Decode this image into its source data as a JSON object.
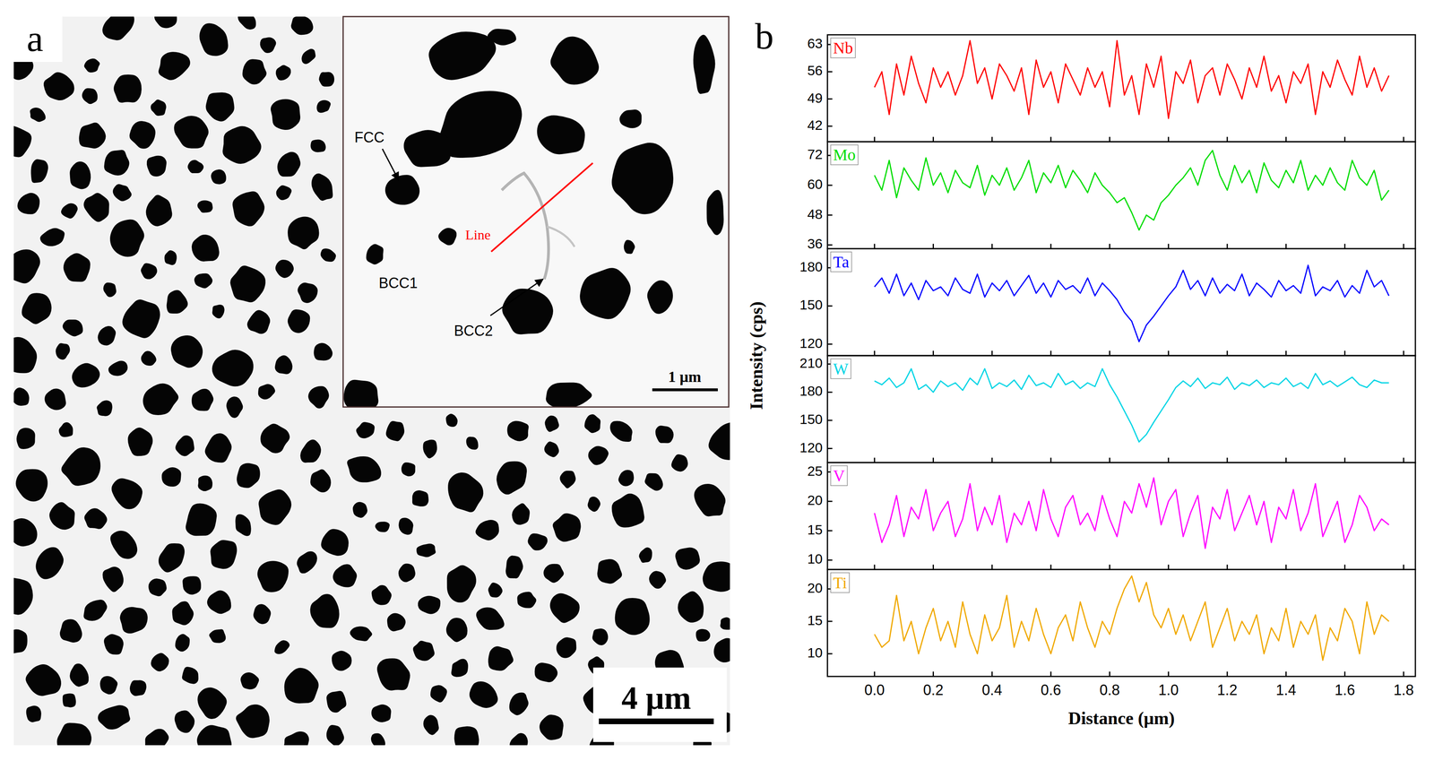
{
  "panel_a": {
    "label": "a",
    "phases": {
      "fcc": "FCC",
      "bcc1": "BCC1",
      "bcc2": "BCC2"
    },
    "line_label": "Line",
    "inset_scale_bar": "1 μm",
    "scale_bar": "4 μm"
  },
  "panel_b_label": "b",
  "chart_data": [
    {
      "type": "line",
      "ylabel": "Intensity (cps)",
      "tick_labels": "y",
      "x": [
        0,
        0.025,
        0.05,
        0.075,
        0.1,
        0.125,
        0.15,
        0.175,
        0.2,
        0.225,
        0.25,
        0.275,
        0.3,
        0.325,
        0.35,
        0.375,
        0.4,
        0.425,
        0.45,
        0.475,
        0.5,
        0.525,
        0.55,
        0.575,
        0.6,
        0.625,
        0.65,
        0.675,
        0.7,
        0.725,
        0.75,
        0.775,
        0.8,
        0.825,
        0.85,
        0.875,
        0.9,
        0.925,
        0.95,
        0.975,
        1,
        1.025,
        1.05,
        1.075,
        1.1,
        1.125,
        1.15,
        1.175,
        1.2,
        1.225,
        1.25,
        1.275,
        1.3,
        1.325,
        1.35,
        1.375,
        1.4,
        1.425,
        1.45,
        1.475,
        1.5,
        1.525,
        1.55,
        1.575,
        1.6,
        1.625,
        1.65,
        1.675,
        1.7,
        1.725,
        1.75
      ],
      "xlim": [
        -0.16,
        1.84
      ],
      "xticks": [
        {
          "value": 0,
          "label": "0.0"
        },
        0.2,
        0.4,
        0.6,
        0.8,
        {
          "value": 1,
          "label": "1.0"
        },
        1.2,
        1.4,
        1.6,
        1.8
      ],
      "ylim": [
        38,
        65.5
      ],
      "yticks": [
        42,
        49,
        56,
        63
      ],
      "series": [
        {
          "name": "Nb",
          "color": "#ff0000",
          "values": [
            52,
            56,
            45,
            58,
            50,
            60,
            53,
            48,
            57,
            52,
            56,
            50,
            55,
            64,
            53,
            57,
            49,
            58,
            55,
            51,
            57,
            45,
            59,
            52,
            56,
            48,
            58,
            54,
            50,
            57,
            52,
            56,
            47,
            64,
            50,
            55,
            45,
            58,
            52,
            60,
            44,
            56,
            53,
            59,
            48,
            55,
            57,
            50,
            58,
            54,
            49,
            57,
            52,
            60,
            51,
            55,
            48,
            56,
            53,
            58,
            45,
            56,
            52,
            59,
            54,
            50,
            60,
            52,
            57,
            51,
            55
          ]
        }
      ]
    },
    {
      "type": "line",
      "tick_labels": "y",
      "x": [
        0,
        0.025,
        0.05,
        0.075,
        0.1,
        0.125,
        0.15,
        0.175,
        0.2,
        0.225,
        0.25,
        0.275,
        0.3,
        0.325,
        0.35,
        0.375,
        0.4,
        0.425,
        0.45,
        0.475,
        0.5,
        0.525,
        0.55,
        0.575,
        0.6,
        0.625,
        0.65,
        0.675,
        0.7,
        0.725,
        0.75,
        0.775,
        0.8,
        0.825,
        0.85,
        0.875,
        0.9,
        0.925,
        0.95,
        0.975,
        1,
        1.025,
        1.05,
        1.075,
        1.1,
        1.125,
        1.15,
        1.175,
        1.2,
        1.225,
        1.25,
        1.275,
        1.3,
        1.325,
        1.35,
        1.375,
        1.4,
        1.425,
        1.45,
        1.475,
        1.5,
        1.525,
        1.55,
        1.575,
        1.6,
        1.625,
        1.65,
        1.675,
        1.7,
        1.725,
        1.75
      ],
      "xlim": [
        -0.16,
        1.84
      ],
      "xticks": [
        {
          "value": 0,
          "label": "0.0"
        },
        0.2,
        0.4,
        0.6,
        0.8,
        {
          "value": 1,
          "label": "1.0"
        },
        1.2,
        1.4,
        1.6,
        1.8
      ],
      "ylim": [
        34.5,
        77.5
      ],
      "yticks": [
        36,
        48,
        60,
        72
      ],
      "series": [
        {
          "name": "Mo",
          "color": "#00dd00",
          "values": [
            64,
            58,
            70,
            55,
            67,
            62,
            58,
            71,
            60,
            65,
            57,
            66,
            61,
            59,
            68,
            56,
            64,
            60,
            67,
            58,
            63,
            70,
            57,
            65,
            61,
            68,
            59,
            66,
            62,
            57,
            65,
            60,
            57,
            53,
            55,
            49,
            42,
            48,
            46,
            53,
            56,
            60,
            63,
            67,
            60,
            70,
            74,
            64,
            58,
            68,
            61,
            66,
            57,
            69,
            62,
            59,
            66,
            61,
            70,
            58,
            64,
            60,
            67,
            61,
            58,
            70,
            63,
            60,
            66,
            54,
            58
          ]
        }
      ]
    },
    {
      "type": "line",
      "tick_labels": "y",
      "x": [
        0,
        0.025,
        0.05,
        0.075,
        0.1,
        0.125,
        0.15,
        0.175,
        0.2,
        0.225,
        0.25,
        0.275,
        0.3,
        0.325,
        0.35,
        0.375,
        0.4,
        0.425,
        0.45,
        0.475,
        0.5,
        0.525,
        0.55,
        0.575,
        0.6,
        0.625,
        0.65,
        0.675,
        0.7,
        0.725,
        0.75,
        0.775,
        0.8,
        0.825,
        0.85,
        0.875,
        0.9,
        0.925,
        0.95,
        0.975,
        1,
        1.025,
        1.05,
        1.075,
        1.1,
        1.125,
        1.15,
        1.175,
        1.2,
        1.225,
        1.25,
        1.275,
        1.3,
        1.325,
        1.35,
        1.375,
        1.4,
        1.425,
        1.45,
        1.475,
        1.5,
        1.525,
        1.55,
        1.575,
        1.6,
        1.625,
        1.65,
        1.675,
        1.7,
        1.725,
        1.75
      ],
      "xlim": [
        -0.16,
        1.84
      ],
      "xticks": [
        {
          "value": 0,
          "label": "0.0"
        },
        0.2,
        0.4,
        0.6,
        0.8,
        {
          "value": 1,
          "label": "1.0"
        },
        1.2,
        1.4,
        1.6,
        1.8
      ],
      "ylim": [
        111,
        195
      ],
      "yticks": [
        120,
        150,
        180
      ],
      "series": [
        {
          "name": "Ta",
          "color": "#0000ff",
          "values": [
            165,
            172,
            160,
            175,
            158,
            168,
            155,
            170,
            162,
            165,
            158,
            172,
            163,
            160,
            175,
            157,
            168,
            162,
            170,
            158,
            166,
            174,
            160,
            168,
            157,
            170,
            163,
            166,
            160,
            172,
            158,
            168,
            162,
            155,
            145,
            138,
            122,
            135,
            142,
            150,
            158,
            165,
            178,
            163,
            170,
            158,
            172,
            160,
            167,
            162,
            175,
            158,
            168,
            163,
            157,
            170,
            162,
            166,
            160,
            182,
            158,
            165,
            162,
            170,
            157,
            166,
            160,
            178,
            165,
            170,
            158
          ]
        }
      ]
    },
    {
      "type": "line",
      "tick_labels": "y",
      "x": [
        0,
        0.025,
        0.05,
        0.075,
        0.1,
        0.125,
        0.15,
        0.175,
        0.2,
        0.225,
        0.25,
        0.275,
        0.3,
        0.325,
        0.35,
        0.375,
        0.4,
        0.425,
        0.45,
        0.475,
        0.5,
        0.525,
        0.55,
        0.575,
        0.6,
        0.625,
        0.65,
        0.675,
        0.7,
        0.725,
        0.75,
        0.775,
        0.8,
        0.825,
        0.85,
        0.875,
        0.9,
        0.925,
        0.95,
        0.975,
        1,
        1.025,
        1.05,
        1.075,
        1.1,
        1.125,
        1.15,
        1.175,
        1.2,
        1.225,
        1.25,
        1.275,
        1.3,
        1.325,
        1.35,
        1.375,
        1.4,
        1.425,
        1.45,
        1.475,
        1.5,
        1.525,
        1.55,
        1.575,
        1.6,
        1.625,
        1.65,
        1.675,
        1.7,
        1.725,
        1.75
      ],
      "xlim": [
        -0.16,
        1.84
      ],
      "xticks": [
        {
          "value": 0,
          "label": "0.0"
        },
        0.2,
        0.4,
        0.6,
        0.8,
        {
          "value": 1,
          "label": "1.0"
        },
        1.2,
        1.4,
        1.6,
        1.8
      ],
      "ylim": [
        105,
        219
      ],
      "yticks": [
        120,
        150,
        180,
        210
      ],
      "series": [
        {
          "name": "W",
          "color": "#00d5e5",
          "values": [
            192,
            188,
            195,
            185,
            190,
            205,
            183,
            188,
            180,
            192,
            186,
            190,
            182,
            195,
            188,
            205,
            184,
            190,
            186,
            193,
            183,
            198,
            187,
            190,
            185,
            200,
            188,
            192,
            184,
            190,
            186,
            205,
            188,
            175,
            160,
            145,
            127,
            135,
            148,
            160,
            172,
            185,
            192,
            186,
            195,
            184,
            190,
            188,
            196,
            183,
            190,
            187,
            193,
            185,
            190,
            188,
            195,
            186,
            190,
            184,
            200,
            188,
            192,
            186,
            191,
            196,
            188,
            185,
            193,
            190,
            190
          ]
        }
      ]
    },
    {
      "type": "line",
      "tick_labels": "y",
      "x": [
        0,
        0.025,
        0.05,
        0.075,
        0.1,
        0.125,
        0.15,
        0.175,
        0.2,
        0.225,
        0.25,
        0.275,
        0.3,
        0.325,
        0.35,
        0.375,
        0.4,
        0.425,
        0.45,
        0.475,
        0.5,
        0.525,
        0.55,
        0.575,
        0.6,
        0.625,
        0.65,
        0.675,
        0.7,
        0.725,
        0.75,
        0.775,
        0.8,
        0.825,
        0.85,
        0.875,
        0.9,
        0.925,
        0.95,
        0.975,
        1,
        1.025,
        1.05,
        1.075,
        1.1,
        1.125,
        1.15,
        1.175,
        1.2,
        1.225,
        1.25,
        1.275,
        1.3,
        1.325,
        1.35,
        1.375,
        1.4,
        1.425,
        1.45,
        1.475,
        1.5,
        1.525,
        1.55,
        1.575,
        1.6,
        1.625,
        1.65,
        1.675,
        1.7,
        1.725,
        1.75
      ],
      "xlim": [
        -0.16,
        1.84
      ],
      "xticks": [
        {
          "value": 0,
          "label": "0.0"
        },
        0.2,
        0.4,
        0.6,
        0.8,
        {
          "value": 1,
          "label": "1.0"
        },
        1.2,
        1.4,
        1.6,
        1.8
      ],
      "ylim": [
        8.4,
        26.6
      ],
      "yticks": [
        10,
        15,
        20,
        25
      ],
      "series": [
        {
          "name": "V",
          "color": "#ff00ff",
          "values": [
            18,
            13,
            16,
            21,
            14,
            19,
            17,
            22,
            15,
            18,
            20,
            14,
            17,
            23,
            15,
            19,
            16,
            21,
            13,
            18,
            16,
            20,
            15,
            22,
            17,
            14,
            19,
            21,
            16,
            18,
            15,
            21,
            17,
            14,
            20,
            18,
            23,
            19,
            24,
            16,
            20,
            22,
            14,
            18,
            21,
            12,
            19,
            17,
            22,
            15,
            18,
            21,
            16,
            20,
            13,
            19,
            17,
            22,
            15,
            18,
            23,
            14,
            17,
            20,
            13,
            16,
            21,
            19,
            15,
            17,
            16
          ]
        }
      ]
    },
    {
      "type": "line",
      "xlabel": "Distance (μm)",
      "x": [
        0,
        0.025,
        0.05,
        0.075,
        0.1,
        0.125,
        0.15,
        0.175,
        0.2,
        0.225,
        0.25,
        0.275,
        0.3,
        0.325,
        0.35,
        0.375,
        0.4,
        0.425,
        0.45,
        0.475,
        0.5,
        0.525,
        0.55,
        0.575,
        0.6,
        0.625,
        0.65,
        0.675,
        0.7,
        0.725,
        0.75,
        0.775,
        0.8,
        0.825,
        0.85,
        0.875,
        0.9,
        0.925,
        0.95,
        0.975,
        1,
        1.025,
        1.05,
        1.075,
        1.1,
        1.125,
        1.15,
        1.175,
        1.2,
        1.225,
        1.25,
        1.275,
        1.3,
        1.325,
        1.35,
        1.375,
        1.4,
        1.425,
        1.45,
        1.475,
        1.5,
        1.525,
        1.55,
        1.575,
        1.6,
        1.625,
        1.65,
        1.675,
        1.7,
        1.725,
        1.75
      ],
      "xlim": [
        -0.16,
        1.84
      ],
      "xticks": [
        {
          "value": 0,
          "label": "0.0"
        },
        0.2,
        0.4,
        0.6,
        0.8,
        {
          "value": 1,
          "label": "1.0"
        },
        1.2,
        1.4,
        1.6,
        1.8
      ],
      "ylim": [
        6.5,
        23
      ],
      "yticks": [
        10,
        15,
        20
      ],
      "series": [
        {
          "name": "Ti",
          "color": "#f0a800",
          "values": [
            13,
            11,
            12,
            19,
            12,
            15,
            10,
            14,
            17,
            12,
            15,
            11,
            18,
            13,
            10,
            16,
            12,
            14,
            19,
            11,
            15,
            12,
            17,
            13,
            10,
            14,
            16,
            12,
            18,
            14,
            11,
            15,
            13,
            17,
            20,
            22,
            18,
            21,
            16,
            14,
            17,
            13,
            16,
            12,
            15,
            18,
            11,
            14,
            17,
            12,
            15,
            13,
            16,
            10,
            14,
            12,
            17,
            11,
            15,
            13,
            16,
            9,
            14,
            12,
            17,
            15,
            10,
            18,
            13,
            16,
            15
          ]
        }
      ]
    }
  ]
}
